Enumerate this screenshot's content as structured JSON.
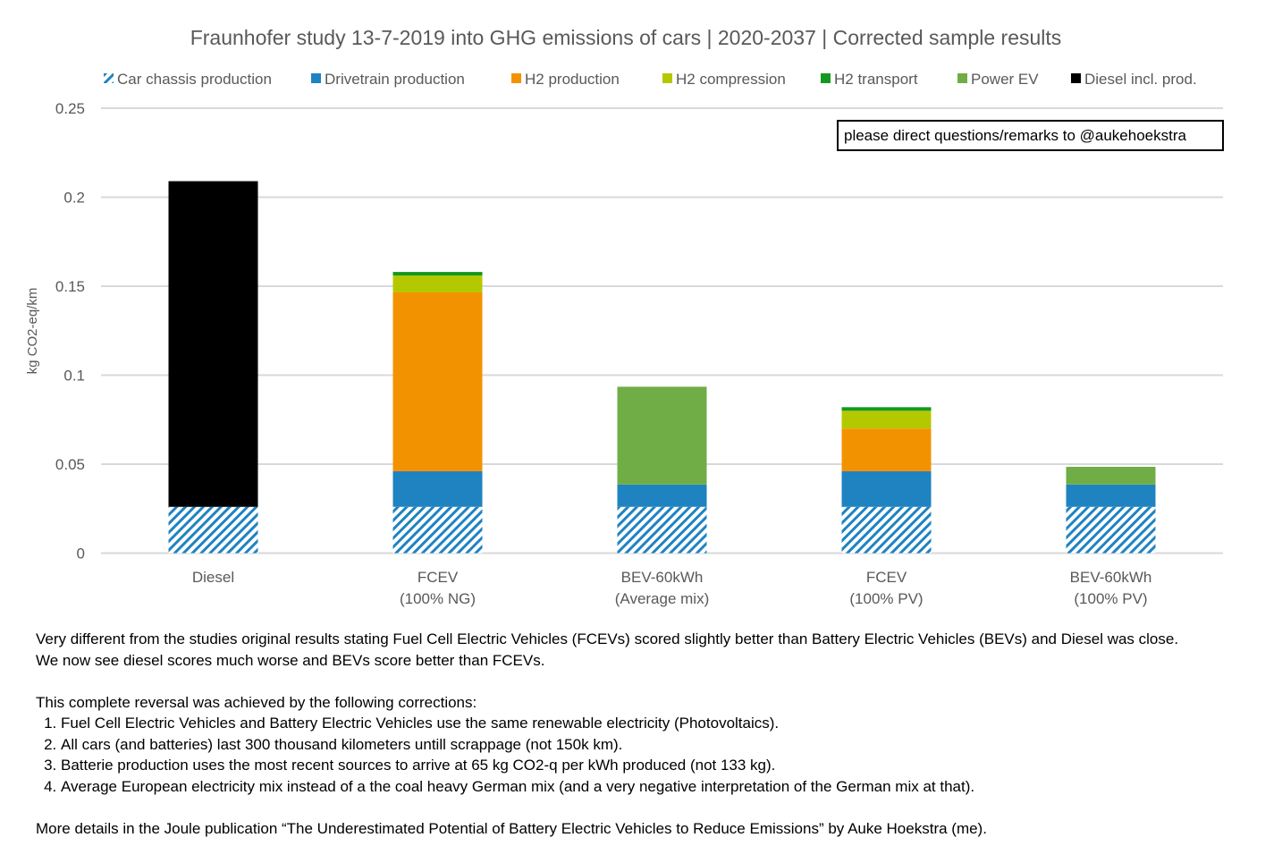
{
  "chart_data": {
    "type": "bar",
    "stacked": true,
    "title": "Fraunhofer study 13-7-2019 into GHG emissions of cars | 2020-2037 | Corrected sample results",
    "xlabel": "",
    "ylabel": "kg CO2-eq/km",
    "ylim": [
      0,
      0.25
    ],
    "yticks": [
      0,
      0.05,
      0.1,
      0.15,
      0.2,
      0.25
    ],
    "ytick_labels": [
      "0",
      "0.05",
      "0.1",
      "0.15",
      "0.2",
      "0.25"
    ],
    "grid": true,
    "legend_position": "top",
    "categories": [
      [
        "Diesel"
      ],
      [
        "FCEV",
        "(100% NG)"
      ],
      [
        "BEV-60kWh",
        "(Average mix)"
      ],
      [
        "FCEV",
        "(100% PV)"
      ],
      [
        "BEV-60kWh",
        "(100% PV)"
      ]
    ],
    "series": [
      {
        "name": "Car chassis production",
        "color": "#1f83c1",
        "pattern": "hatch",
        "values": [
          0.026,
          0.026,
          0.026,
          0.026,
          0.026
        ]
      },
      {
        "name": "Drivetrain production",
        "color": "#1f83c1",
        "values": [
          0,
          0.02,
          0.0125,
          0.02,
          0.0125
        ]
      },
      {
        "name": "H2 production",
        "color": "#f39200",
        "values": [
          0,
          0.1005,
          0,
          0.024,
          0
        ]
      },
      {
        "name": "H2 compression",
        "color": "#b4c800",
        "values": [
          0,
          0.0095,
          0,
          0.01,
          0
        ]
      },
      {
        "name": "H2 transport",
        "color": "#13991e",
        "values": [
          0,
          0.002,
          0,
          0.002,
          0
        ]
      },
      {
        "name": "Power EV",
        "color": "#70ad47",
        "values": [
          0,
          0,
          0.055,
          0,
          0.01
        ]
      },
      {
        "name": "Diesel incl. prod.",
        "color": "#000000",
        "values": [
          0.183,
          0,
          0,
          0,
          0
        ]
      }
    ],
    "annotation": "please direct questions/remarks to @aukehoekstra"
  },
  "caption": {
    "paragraph1": [
      "Very different from the studies original results stating Fuel Cell Electric Vehicles (FCEVs) scored slightly better than Battery Electric Vehicles (BEVs) and Diesel was close.",
      "We now see diesel scores much worse and BEVs score better than FCEVs."
    ],
    "intro": "This complete reversal was achieved by the following corrections:",
    "corrections": [
      "Fuel Cell Electric Vehicles and Battery Electric Vehicles use the same renewable electricity (Photovoltaics).",
      "All cars (and batteries) last 300 thousand kilometers untill scrappage (not 150k km).",
      "Batterie production uses the most recent sources to arrive at 65 kg CO2-q per kWh produced (not 133 kg).",
      "Average European electricity mix instead of a the coal heavy German mix (and a very negative interpretation of the German mix at that)."
    ],
    "footer": "More details in the Joule publication “The Underestimated Potential of Battery Electric Vehicles to Reduce Emissions” by Auke Hoekstra (me)."
  }
}
